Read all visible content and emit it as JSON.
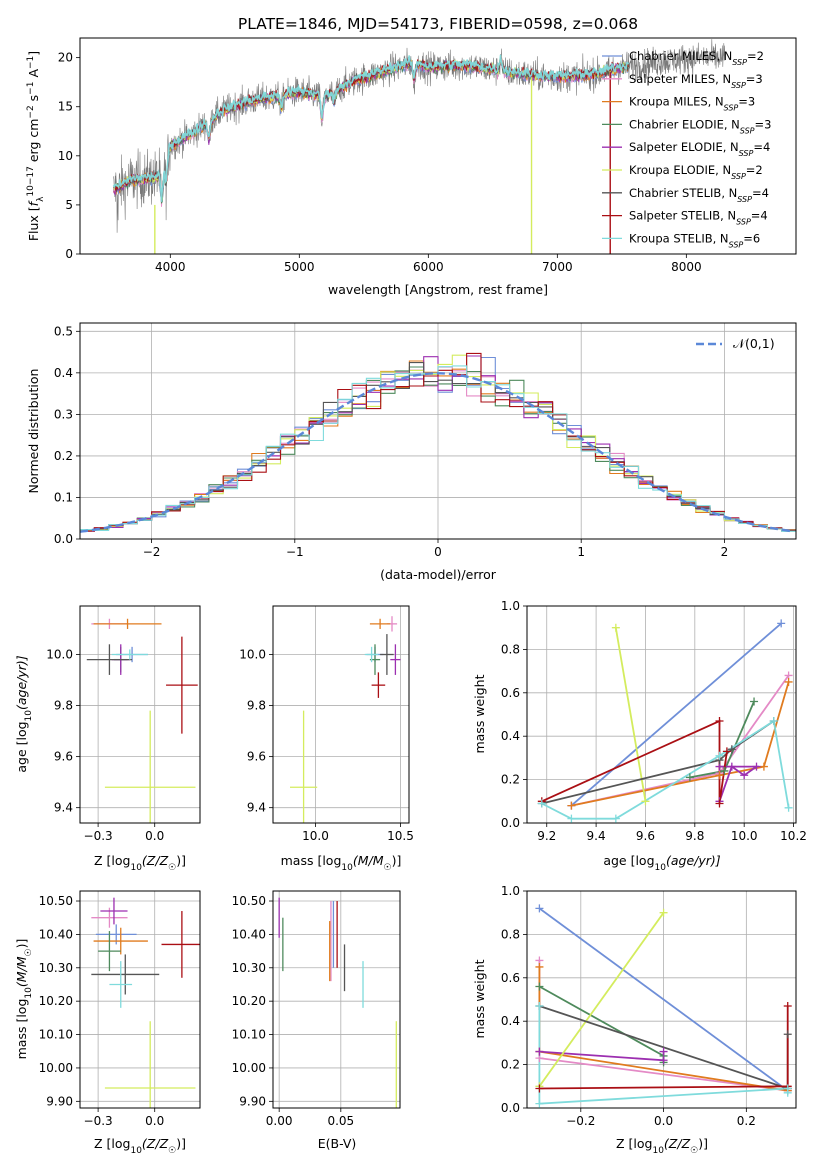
{
  "title": "PLATE=1846, MJD=54173, FIBERID=0598, z=0.068",
  "colors": {
    "Chabrier MILES": "#6f8fd8",
    "Salpeter MILES": "#e48ac6",
    "Kroupa MILES": "#e07b1f",
    "Chabrier ELODIE": "#4e8a5c",
    "Salpeter ELODIE": "#9c2fb0",
    "Kroupa ELODIE": "#d4ec5e",
    "Chabrier STELIB": "#555555",
    "Salpeter STELIB": "#aa0f14",
    "Kroupa STELIB": "#7fdbdc"
  },
  "chart_data": [
    {
      "id": "spectrum",
      "type": "line",
      "title": "PLATE=1846, MJD=54173, FIBERID=0598, z=0.068",
      "xlabel": "wavelength [Angstrom, rest frame]",
      "ylabel_parts": [
        "Flux [",
        "f",
        "λ",
        "10",
        "−17",
        " erg cm",
        "−2",
        " s",
        "−1",
        " A",
        "−1",
        "]"
      ],
      "xlim": [
        3300,
        8850
      ],
      "ylim": [
        0,
        22
      ],
      "xticks": [
        4000,
        5000,
        6000,
        7000,
        8000
      ],
      "yticks": [
        0,
        5,
        10,
        15,
        20
      ],
      "grid": false,
      "legend_position": "top-right",
      "legend": [
        {
          "model": "Chabrier MILES",
          "n": "2"
        },
        {
          "model": "Salpeter MILES",
          "n": "3"
        },
        {
          "model": "Kroupa MILES",
          "n": "3"
        },
        {
          "model": "Chabrier ELODIE",
          "n": "3"
        },
        {
          "model": "Salpeter ELODIE",
          "n": "4"
        },
        {
          "model": "Kroupa ELODIE",
          "n": "2"
        },
        {
          "model": "Chabrier STELIB",
          "n": "4"
        },
        {
          "model": "Salpeter STELIB",
          "n": "4"
        },
        {
          "model": "Kroupa STELIB",
          "n": "6"
        }
      ],
      "continuum": [
        [
          3560,
          6.5
        ],
        [
          3700,
          7.5
        ],
        [
          3900,
          7.8
        ],
        [
          4000,
          11
        ],
        [
          4200,
          12.5
        ],
        [
          4400,
          14.5
        ],
        [
          4600,
          15.5
        ],
        [
          4800,
          16
        ],
        [
          5000,
          16.5
        ],
        [
          5200,
          16
        ],
        [
          5400,
          17.5
        ],
        [
          5700,
          18.8
        ],
        [
          5890,
          19.5
        ],
        [
          6000,
          19
        ],
        [
          6300,
          19.2
        ],
        [
          6550,
          18.6
        ],
        [
          6800,
          18.2
        ],
        [
          7000,
          18
        ],
        [
          7300,
          18.3
        ],
        [
          7500,
          19
        ],
        [
          7800,
          19.6
        ],
        [
          8100,
          20
        ],
        [
          8300,
          20
        ]
      ],
      "data_wavelength_range": [
        3560,
        8300
      ],
      "models_wavelength_range": [
        3560,
        7550
      ],
      "spikes": [
        {
          "x": 3880,
          "y0": 5,
          "y1": 0,
          "series": "Kroupa ELODIE"
        },
        {
          "x": 6800,
          "y0": 18,
          "y1": 0,
          "series": "Kroupa ELODIE"
        },
        {
          "x": 7410,
          "y0": 18.5,
          "y1": 0,
          "series": "Salpeter STELIB"
        }
      ]
    },
    {
      "id": "residual-histogram",
      "type": "histogram",
      "xlabel": "(data-model)/error",
      "ylabel": "Normed distribution",
      "xlim": [
        -2.5,
        2.5
      ],
      "ylim": [
        0,
        0.52
      ],
      "xticks": [
        -2,
        -1,
        0,
        1,
        2
      ],
      "yticks": [
        0.0,
        0.1,
        0.2,
        0.3,
        0.4,
        0.5
      ],
      "grid": true,
      "legend_position": "top-right",
      "reference_curve": {
        "label": "𝒩(0,1)",
        "style": "dashed",
        "color": "#5b88d8"
      },
      "bin_width": 0.1,
      "bin_start": -2.5
    },
    {
      "id": "age-vs-Z",
      "type": "errorbar",
      "xlabel_parts": [
        "Z [log",
        "10",
        "(Z/Z",
        "☉",
        ")]"
      ],
      "ylabel_parts": [
        "age  [log",
        "10",
        "(age/yr)]"
      ],
      "xlim": [
        -0.33,
        0.2
      ],
      "ylim": [
        9.34,
        10.19
      ],
      "xticks": [
        -0.25,
        0.0
      ],
      "yticks": [
        9.4,
        9.6,
        9.8,
        10.0
      ],
      "grid": true,
      "points": [
        {
          "series": "Chabrier MILES",
          "x": -0.1,
          "y": 10.0,
          "xerr": 0.07,
          "yerr": 0.03
        },
        {
          "series": "Salpeter MILES",
          "x": -0.2,
          "y": 10.12,
          "xerr": 0.08,
          "yerr": 0.02
        },
        {
          "series": "Kroupa MILES",
          "x": -0.12,
          "y": 10.12,
          "xerr": 0.15,
          "yerr": 0.02
        },
        {
          "series": "Chabrier ELODIE",
          "x": -0.15,
          "y": 9.98,
          "xerr": 0.03,
          "yerr": 0.05
        },
        {
          "series": "Salpeter ELODIE",
          "x": -0.15,
          "y": 9.98,
          "xerr": 0.04,
          "yerr": 0.06
        },
        {
          "series": "Kroupa ELODIE",
          "x": -0.02,
          "y": 9.48,
          "xerr": 0.2,
          "yerr": 0.3
        },
        {
          "series": "Chabrier STELIB",
          "x": -0.2,
          "y": 9.98,
          "xerr": 0.1,
          "yerr": 0.06
        },
        {
          "series": "Salpeter STELIB",
          "x": 0.12,
          "y": 9.88,
          "xerr": 0.07,
          "yerr": 0.19
        },
        {
          "series": "Kroupa STELIB",
          "x": -0.11,
          "y": 10.0,
          "xerr": 0.08,
          "yerr": 0.02
        }
      ]
    },
    {
      "id": "age-vs-mass",
      "type": "errorbar",
      "xlabel_parts": [
        "mass [log",
        "10",
        "(M/M",
        "☉",
        ")]"
      ],
      "ylabel_parts": [],
      "xlim": [
        9.75,
        10.55
      ],
      "ylim": [
        9.34,
        10.19
      ],
      "xticks": [
        10.0,
        10.5
      ],
      "yticks": [
        9.4,
        9.6,
        9.8,
        10.0
      ],
      "grid": true,
      "points": [
        {
          "series": "Chabrier MILES",
          "x": 10.35,
          "y": 10.0,
          "xerr": 0.05,
          "yerr": 0.03
        },
        {
          "series": "Salpeter MILES",
          "x": 10.45,
          "y": 10.12,
          "xerr": 0.03,
          "yerr": 0.03
        },
        {
          "series": "Kroupa MILES",
          "x": 10.38,
          "y": 10.12,
          "xerr": 0.06,
          "yerr": 0.02
        },
        {
          "series": "Chabrier ELODIE",
          "x": 10.35,
          "y": 9.98,
          "xerr": 0.03,
          "yerr": 0.06
        },
        {
          "series": "Salpeter ELODIE",
          "x": 10.47,
          "y": 9.98,
          "xerr": 0.03,
          "yerr": 0.06
        },
        {
          "series": "Kroupa ELODIE",
          "x": 9.93,
          "y": 9.48,
          "xerr": 0.08,
          "yerr": 0.3
        },
        {
          "series": "Chabrier STELIB",
          "x": 10.42,
          "y": 10.0,
          "xerr": 0.04,
          "yerr": 0.08
        },
        {
          "series": "Salpeter STELIB",
          "x": 10.37,
          "y": 9.88,
          "xerr": 0.04,
          "yerr": 0.05
        },
        {
          "series": "Kroupa STELIB",
          "x": 10.33,
          "y": 10.0,
          "xerr": 0.04,
          "yerr": 0.03
        }
      ]
    },
    {
      "id": "mass-weight-vs-age",
      "type": "line",
      "xlabel_parts": [
        "age  [log",
        "10",
        "(age/yr)]"
      ],
      "ylabel": "mass weight",
      "xlim": [
        9.12,
        10.21
      ],
      "ylim": [
        0.0,
        1.0
      ],
      "xticks": [
        9.2,
        9.4,
        9.6,
        9.8,
        10.0,
        10.2
      ],
      "yticks": [
        0.0,
        0.2,
        0.4,
        0.6,
        0.8,
        1.0
      ],
      "grid": true,
      "series": [
        {
          "name": "Chabrier MILES",
          "x": [
            9.3,
            10.15
          ],
          "y": [
            0.08,
            0.92
          ]
        },
        {
          "name": "Salpeter MILES",
          "x": [
            9.3,
            9.9,
            10.18
          ],
          "y": [
            0.08,
            0.23,
            0.68
          ]
        },
        {
          "name": "Kroupa MILES",
          "x": [
            9.3,
            9.9,
            10.08,
            10.18
          ],
          "y": [
            0.08,
            0.22,
            0.26,
            0.65
          ]
        },
        {
          "name": "Chabrier ELODIE",
          "x": [
            9.78,
            9.92,
            10.04
          ],
          "y": [
            0.21,
            0.24,
            0.56
          ]
        },
        {
          "name": "Salpeter ELODIE",
          "x": [
            9.9,
            9.95,
            10.0,
            10.05,
            9.9
          ],
          "y": [
            0.1,
            0.26,
            0.22,
            0.26,
            0.26
          ]
        },
        {
          "name": "Kroupa ELODIE",
          "x": [
            9.48,
            9.6
          ],
          "y": [
            0.9,
            0.1
          ]
        },
        {
          "name": "Chabrier STELIB",
          "x": [
            9.18,
            9.9,
            9.95,
            10.12
          ],
          "y": [
            0.09,
            0.29,
            0.34,
            0.47
          ]
        },
        {
          "name": "Salpeter STELIB",
          "x": [
            9.18,
            9.9,
            9.9,
            9.93
          ],
          "y": [
            0.1,
            0.47,
            0.09,
            0.33
          ]
        },
        {
          "name": "Kroupa STELIB",
          "x": [
            9.18,
            9.3,
            9.48,
            9.9,
            10.12,
            10.18
          ],
          "y": [
            0.09,
            0.02,
            0.02,
            0.31,
            0.47,
            0.07
          ]
        }
      ]
    },
    {
      "id": "mass-vs-Z",
      "type": "errorbar",
      "xlabel_parts": [
        "Z [log",
        "10",
        "(Z/Z",
        "☉",
        ")]"
      ],
      "ylabel_parts": [
        "mass [log",
        "10",
        "(M/M",
        "☉",
        ")]"
      ],
      "xlim": [
        -0.33,
        0.2
      ],
      "ylim": [
        9.88,
        10.53
      ],
      "xticks": [
        -0.25,
        0.0
      ],
      "yticks": [
        9.9,
        10.0,
        10.1,
        10.2,
        10.3,
        10.4,
        10.5
      ],
      "grid": true,
      "points": [
        {
          "series": "Chabrier MILES",
          "x": -0.17,
          "y": 10.4,
          "xerr": 0.09,
          "yerr": 0.03
        },
        {
          "series": "Salpeter MILES",
          "x": -0.2,
          "y": 10.45,
          "xerr": 0.08,
          "yerr": 0.03
        },
        {
          "series": "Kroupa MILES",
          "x": -0.15,
          "y": 10.38,
          "xerr": 0.12,
          "yerr": 0.04
        },
        {
          "series": "Chabrier ELODIE",
          "x": -0.2,
          "y": 10.35,
          "xerr": 0.05,
          "yerr": 0.06
        },
        {
          "series": "Salpeter ELODIE",
          "x": -0.18,
          "y": 10.47,
          "xerr": 0.06,
          "yerr": 0.04
        },
        {
          "series": "Kroupa ELODIE",
          "x": -0.02,
          "y": 9.94,
          "xerr": 0.2,
          "yerr": 0.2
        },
        {
          "series": "Chabrier STELIB",
          "x": -0.13,
          "y": 10.28,
          "xerr": 0.15,
          "yerr": 0.06
        },
        {
          "series": "Salpeter STELIB",
          "x": 0.12,
          "y": 10.37,
          "xerr": 0.09,
          "yerr": 0.1
        },
        {
          "series": "Kroupa STELIB",
          "x": -0.15,
          "y": 10.25,
          "xerr": 0.05,
          "yerr": 0.07
        }
      ]
    },
    {
      "id": "mass-vs-EBV",
      "type": "errorbar",
      "xlabel": "E(B-V)",
      "ylabel_parts": [],
      "xlim": [
        -0.005,
        0.098
      ],
      "ylim": [
        9.88,
        10.53
      ],
      "xticks": [
        0.0,
        0.05
      ],
      "yticks": [
        9.9,
        10.0,
        10.1,
        10.2,
        10.3,
        10.4,
        10.5
      ],
      "grid": true,
      "points": [
        {
          "series": "Chabrier MILES",
          "x": 0.044,
          "y": 10.4,
          "xerr": 0,
          "yerr": 0.1
        },
        {
          "series": "Salpeter MILES",
          "x": 0.042,
          "y": 10.38,
          "xerr": 0,
          "yerr": 0.12
        },
        {
          "series": "Kroupa MILES",
          "x": 0.041,
          "y": 10.35,
          "xerr": 0,
          "yerr": 0.09
        },
        {
          "series": "Chabrier ELODIE",
          "x": 0.003,
          "y": 10.37,
          "xerr": 0,
          "yerr": 0.08
        },
        {
          "series": "Salpeter ELODIE",
          "x": 0.0,
          "y": 10.45,
          "xerr": 0,
          "yerr": 0.06
        },
        {
          "series": "Kroupa ELODIE",
          "x": 0.095,
          "y": 10.0,
          "xerr": 0,
          "yerr": 0.14
        },
        {
          "series": "Chabrier STELIB",
          "x": 0.053,
          "y": 10.3,
          "xerr": 0,
          "yerr": 0.07
        },
        {
          "series": "Salpeter STELIB",
          "x": 0.047,
          "y": 10.4,
          "xerr": 0,
          "yerr": 0.1
        },
        {
          "series": "Kroupa STELIB",
          "x": 0.068,
          "y": 10.25,
          "xerr": 0,
          "yerr": 0.07
        }
      ]
    },
    {
      "id": "mass-weight-vs-Z",
      "type": "line",
      "xlabel_parts": [
        "Z [log",
        "10",
        "(Z/Z",
        "☉",
        ")]"
      ],
      "ylabel": "mass weight",
      "xlim": [
        -0.33,
        0.32
      ],
      "ylim": [
        0.0,
        1.0
      ],
      "xticks": [
        -0.2,
        0.0,
        0.2
      ],
      "yticks": [
        0.0,
        0.2,
        0.4,
        0.6,
        0.8,
        1.0
      ],
      "grid": true,
      "series": [
        {
          "name": "Chabrier MILES",
          "x": [
            -0.3,
            0.3
          ],
          "y": [
            0.92,
            0.08
          ]
        },
        {
          "name": "Salpeter MILES",
          "x": [
            -0.3,
            -0.3,
            0.3
          ],
          "y": [
            0.68,
            0.23,
            0.08
          ]
        },
        {
          "name": "Kroupa MILES",
          "x": [
            -0.3,
            -0.3,
            0.3
          ],
          "y": [
            0.65,
            0.26,
            0.08
          ]
        },
        {
          "name": "Chabrier ELODIE",
          "x": [
            -0.3,
            0.0,
            0.0
          ],
          "y": [
            0.56,
            0.24,
            0.21
          ]
        },
        {
          "name": "Salpeter ELODIE",
          "x": [
            -0.3,
            0.0,
            0.0
          ],
          "y": [
            0.26,
            0.22,
            0.26
          ]
        },
        {
          "name": "Kroupa ELODIE",
          "x": [
            -0.3,
            0.0
          ],
          "y": [
            0.1,
            0.9
          ]
        },
        {
          "name": "Chabrier STELIB",
          "x": [
            -0.3,
            0.3,
            0.3
          ],
          "y": [
            0.47,
            0.09,
            0.34
          ]
        },
        {
          "name": "Salpeter STELIB",
          "x": [
            -0.3,
            0.3,
            0.3,
            0.3
          ],
          "y": [
            0.09,
            0.1,
            0.47,
            0.09
          ]
        },
        {
          "name": "Kroupa STELIB",
          "x": [
            -0.3,
            -0.3,
            0.3,
            0.3
          ],
          "y": [
            0.47,
            0.02,
            0.09,
            0.07
          ]
        }
      ]
    }
  ]
}
